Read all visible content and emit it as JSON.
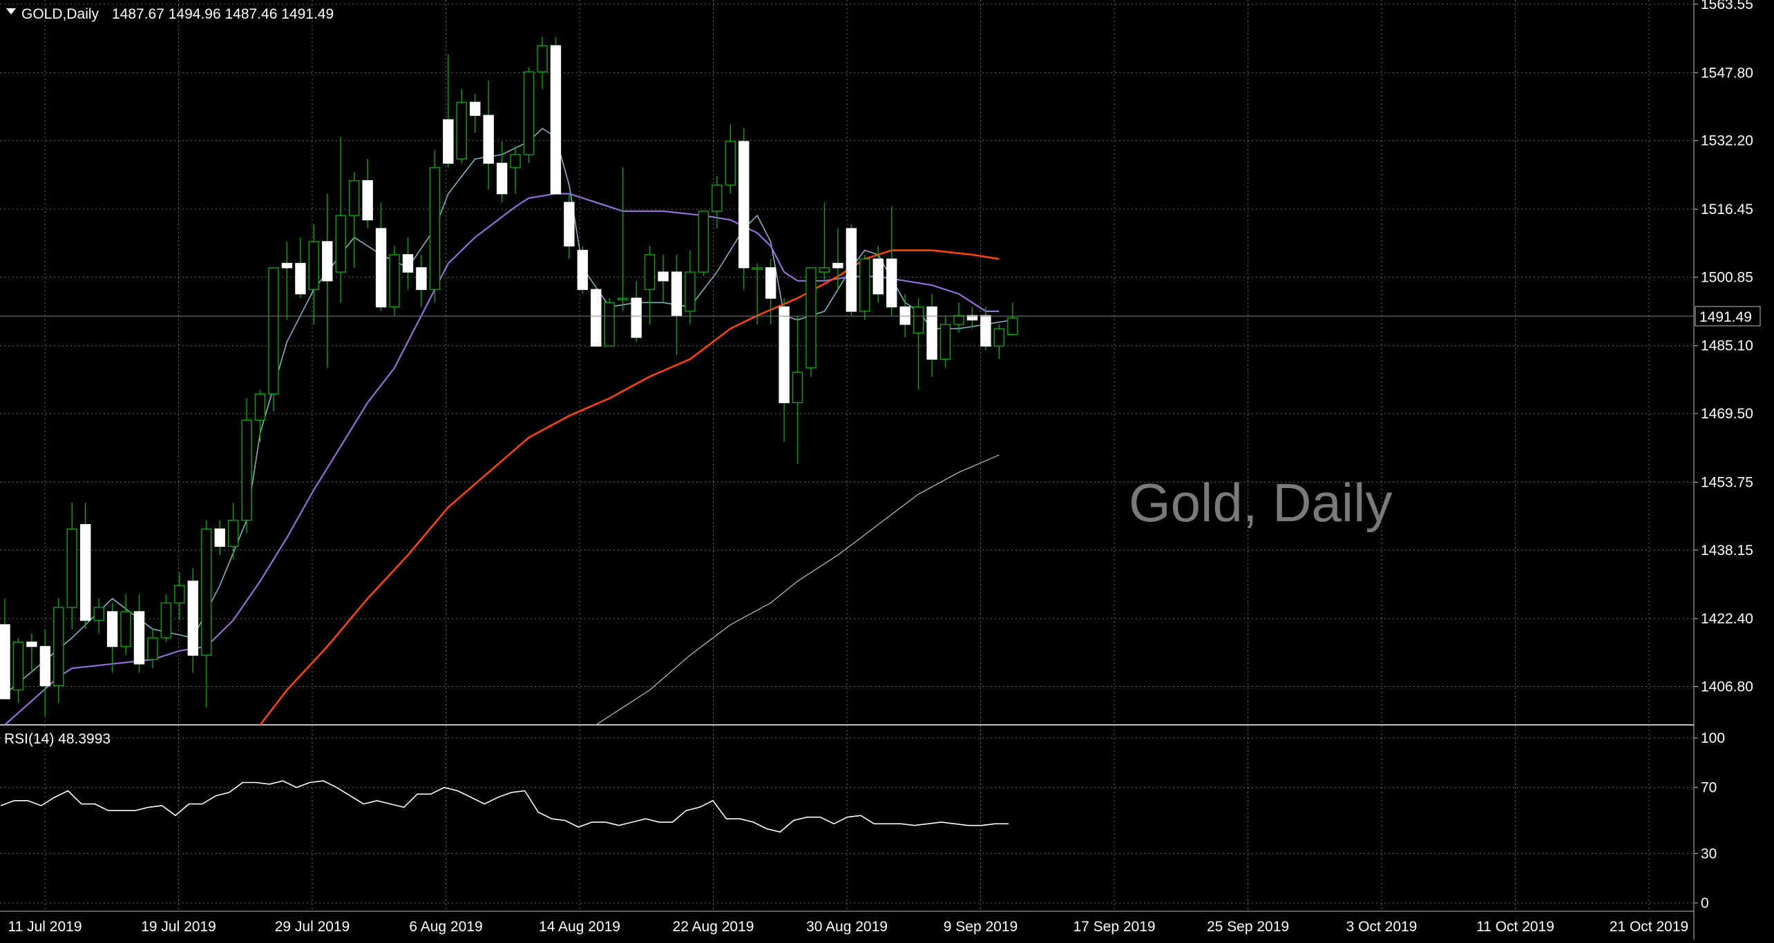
{
  "header": {
    "symbol_label": "GOLD,Daily",
    "ohlc": "1487.67 1494.96 1487.46 1491.49"
  },
  "watermark": "Gold, Daily",
  "current_price_label": "1491.49",
  "rsi_header": "RSI(14) 48.3993",
  "colors": {
    "background": "#000000",
    "grid": "#c0c0c0",
    "bull_candle": "#00aa00",
    "bear_candle": "#ffffff",
    "ma_fast": "#7fb3c8",
    "ma_medium": "#9370db",
    "ma_slow": "#ff4500",
    "ma_long": "#c0c0c0",
    "rsi_line": "#ffffff",
    "watermark": "#7a7a7a"
  },
  "chart_data": [
    {
      "type": "candlestick",
      "title": "GOLD,Daily",
      "price_axis_ticks": [
        "1563.55",
        "1547.80",
        "1532.20",
        "1516.45",
        "1500.85",
        "1485.10",
        "1469.50",
        "1453.75",
        "1438.15",
        "1422.40",
        "1406.80"
      ],
      "ylim": [
        1398,
        1564.5
      ],
      "date_axis_ticks": [
        "11 Jul 2019",
        "19 Jul 2019",
        "29 Jul 2019",
        "6 Aug 2019",
        "14 Aug 2019",
        "22 Aug 2019",
        "30 Aug 2019",
        "9 Sep 2019",
        "17 Sep 2019",
        "25 Sep 2019",
        "3 Oct 2019",
        "11 Oct 2019",
        "21 Oct 2019"
      ],
      "grid": true,
      "candles": [
        {
          "o": 1421,
          "h": 1427,
          "l": 1404,
          "c": 1404
        },
        {
          "o": 1406,
          "h": 1418,
          "l": 1403,
          "c": 1417
        },
        {
          "o": 1417,
          "h": 1419,
          "l": 1410,
          "c": 1416
        },
        {
          "o": 1416,
          "h": 1420,
          "l": 1400,
          "c": 1407
        },
        {
          "o": 1407,
          "h": 1427,
          "l": 1403,
          "c": 1425
        },
        {
          "o": 1425,
          "h": 1449,
          "l": 1420,
          "c": 1443
        },
        {
          "o": 1444,
          "h": 1449,
          "l": 1420,
          "c": 1422
        },
        {
          "o": 1422,
          "h": 1427,
          "l": 1419,
          "c": 1425
        },
        {
          "o": 1424,
          "h": 1426,
          "l": 1410,
          "c": 1416
        },
        {
          "o": 1416,
          "h": 1428,
          "l": 1414,
          "c": 1424
        },
        {
          "o": 1424,
          "h": 1428,
          "l": 1410,
          "c": 1412
        },
        {
          "o": 1413,
          "h": 1420,
          "l": 1411,
          "c": 1418
        },
        {
          "o": 1418,
          "h": 1428,
          "l": 1417,
          "c": 1426
        },
        {
          "o": 1426,
          "h": 1433,
          "l": 1422,
          "c": 1430
        },
        {
          "o": 1431,
          "h": 1434,
          "l": 1410,
          "c": 1414
        },
        {
          "o": 1414,
          "h": 1445,
          "l": 1402,
          "c": 1443
        },
        {
          "o": 1443,
          "h": 1445,
          "l": 1437,
          "c": 1439
        },
        {
          "o": 1439,
          "h": 1449,
          "l": 1436,
          "c": 1445
        },
        {
          "o": 1445,
          "h": 1473,
          "l": 1442,
          "c": 1468
        },
        {
          "o": 1468,
          "h": 1475,
          "l": 1463,
          "c": 1474
        },
        {
          "o": 1474,
          "h": 1503,
          "l": 1470,
          "c": 1503
        },
        {
          "o": 1504,
          "h": 1509,
          "l": 1491,
          "c": 1503
        },
        {
          "o": 1504,
          "h": 1510,
          "l": 1496,
          "c": 1497
        },
        {
          "o": 1498,
          "h": 1513,
          "l": 1490,
          "c": 1509
        },
        {
          "o": 1509,
          "h": 1520,
          "l": 1480,
          "c": 1500
        },
        {
          "o": 1502,
          "h": 1533,
          "l": 1495,
          "c": 1515
        },
        {
          "o": 1515,
          "h": 1525,
          "l": 1503,
          "c": 1523
        },
        {
          "o": 1523,
          "h": 1528,
          "l": 1512,
          "c": 1514
        },
        {
          "o": 1512,
          "h": 1518,
          "l": 1493,
          "c": 1494
        },
        {
          "o": 1494,
          "h": 1508,
          "l": 1492,
          "c": 1506
        },
        {
          "o": 1506,
          "h": 1510,
          "l": 1498,
          "c": 1502
        },
        {
          "o": 1503,
          "h": 1506,
          "l": 1494,
          "c": 1498
        },
        {
          "o": 1498,
          "h": 1530,
          "l": 1495,
          "c": 1526
        },
        {
          "o": 1537,
          "h": 1552,
          "l": 1526,
          "c": 1527
        },
        {
          "o": 1528,
          "h": 1544,
          "l": 1527,
          "c": 1541
        },
        {
          "o": 1541,
          "h": 1543,
          "l": 1534,
          "c": 1538
        },
        {
          "o": 1538,
          "h": 1546,
          "l": 1521,
          "c": 1527
        },
        {
          "o": 1527,
          "h": 1532,
          "l": 1518,
          "c": 1520
        },
        {
          "o": 1526,
          "h": 1531,
          "l": 1520,
          "c": 1529
        },
        {
          "o": 1529,
          "h": 1549,
          "l": 1527,
          "c": 1548
        },
        {
          "o": 1548,
          "h": 1556,
          "l": 1544,
          "c": 1554
        },
        {
          "o": 1554,
          "h": 1556,
          "l": 1520,
          "c": 1520
        },
        {
          "o": 1518,
          "h": 1520,
          "l": 1505,
          "c": 1508
        },
        {
          "o": 1507,
          "h": 1508,
          "l": 1497,
          "c": 1498
        },
        {
          "o": 1498,
          "h": 1499,
          "l": 1485,
          "c": 1485
        },
        {
          "o": 1485,
          "h": 1496,
          "l": 1485,
          "c": 1495
        },
        {
          "o": 1496,
          "h": 1526,
          "l": 1493,
          "c": 1496
        },
        {
          "o": 1496,
          "h": 1500,
          "l": 1486,
          "c": 1487
        },
        {
          "o": 1498,
          "h": 1508,
          "l": 1490,
          "c": 1506
        },
        {
          "o": 1502,
          "h": 1506,
          "l": 1495,
          "c": 1500
        },
        {
          "o": 1502,
          "h": 1506,
          "l": 1483,
          "c": 1492
        },
        {
          "o": 1493,
          "h": 1507,
          "l": 1490,
          "c": 1502
        },
        {
          "o": 1502,
          "h": 1516,
          "l": 1501,
          "c": 1516
        },
        {
          "o": 1516,
          "h": 1524,
          "l": 1512,
          "c": 1522
        },
        {
          "o": 1522,
          "h": 1536,
          "l": 1520,
          "c": 1532
        },
        {
          "o": 1532,
          "h": 1535,
          "l": 1498,
          "c": 1503
        },
        {
          "o": 1503,
          "h": 1504,
          "l": 1490,
          "c": 1503
        },
        {
          "o": 1503,
          "h": 1505,
          "l": 1490,
          "c": 1496
        },
        {
          "o": 1494,
          "h": 1496,
          "l": 1463,
          "c": 1472
        },
        {
          "o": 1472,
          "h": 1492,
          "l": 1458,
          "c": 1479
        },
        {
          "o": 1480,
          "h": 1503,
          "l": 1478,
          "c": 1503
        },
        {
          "o": 1502,
          "h": 1518,
          "l": 1500,
          "c": 1503
        },
        {
          "o": 1504,
          "h": 1512,
          "l": 1498,
          "c": 1503
        },
        {
          "o": 1512,
          "h": 1513,
          "l": 1492,
          "c": 1493
        },
        {
          "o": 1493,
          "h": 1506,
          "l": 1491,
          "c": 1505
        },
        {
          "o": 1505,
          "h": 1508,
          "l": 1495,
          "c": 1497
        },
        {
          "o": 1505,
          "h": 1517,
          "l": 1492,
          "c": 1494
        },
        {
          "o": 1494,
          "h": 1497,
          "l": 1487,
          "c": 1490
        },
        {
          "o": 1488,
          "h": 1496,
          "l": 1475,
          "c": 1494
        },
        {
          "o": 1494,
          "h": 1497,
          "l": 1478,
          "c": 1482
        },
        {
          "o": 1482,
          "h": 1492,
          "l": 1480,
          "c": 1490
        },
        {
          "o": 1490,
          "h": 1495,
          "l": 1488,
          "c": 1492
        },
        {
          "o": 1492,
          "h": 1494,
          "l": 1489,
          "c": 1491
        },
        {
          "o": 1492,
          "h": 1494,
          "l": 1484,
          "c": 1485
        },
        {
          "o": 1485,
          "h": 1490,
          "l": 1482,
          "c": 1489
        },
        {
          "o": 1487.67,
          "h": 1494.96,
          "l": 1487.46,
          "c": 1491.49
        }
      ],
      "moving_averages": [
        {
          "role": "fast",
          "color_key": "ma_fast",
          "points": [
            [
              0,
              1405
            ],
            [
              5,
              1418
            ],
            [
              8,
              1427
            ],
            [
              11,
              1420
            ],
            [
              14,
              1418
            ],
            [
              16,
              1430
            ],
            [
              18,
              1445
            ],
            [
              19,
              1465
            ],
            [
              21,
              1486
            ],
            [
              23,
              1498
            ],
            [
              26,
              1510
            ],
            [
              28,
              1506
            ],
            [
              30,
              1503
            ],
            [
              32,
              1512
            ],
            [
              33,
              1520
            ],
            [
              35,
              1528
            ],
            [
              37,
              1529
            ],
            [
              39,
              1532
            ],
            [
              40,
              1535
            ],
            [
              41,
              1533
            ],
            [
              42,
              1522
            ],
            [
              43,
              1503
            ],
            [
              45,
              1494
            ],
            [
              47,
              1495
            ],
            [
              49,
              1495
            ],
            [
              51,
              1494
            ],
            [
              53,
              1502
            ],
            [
              55,
              1512
            ],
            [
              56,
              1515
            ],
            [
              57,
              1509
            ],
            [
              58,
              1492
            ],
            [
              59,
              1491
            ],
            [
              61,
              1493
            ],
            [
              62,
              1498
            ],
            [
              63,
              1503
            ],
            [
              64,
              1507
            ],
            [
              65,
              1506
            ],
            [
              67,
              1495
            ],
            [
              68,
              1493
            ],
            [
              69,
              1489
            ],
            [
              71,
              1489
            ],
            [
              73,
              1490
            ],
            [
              75,
              1491
            ]
          ]
        },
        {
          "role": "medium",
          "color_key": "ma_medium",
          "points": [
            [
              0,
              1398
            ],
            [
              4,
              1409
            ],
            [
              5,
              1411
            ],
            [
              8,
              1412
            ],
            [
              11,
              1413
            ],
            [
              13,
              1415
            ],
            [
              15,
              1416
            ],
            [
              17,
              1422
            ],
            [
              19,
              1431
            ],
            [
              21,
              1441
            ],
            [
              23,
              1452
            ],
            [
              25,
              1462
            ],
            [
              27,
              1472
            ],
            [
              29,
              1480
            ],
            [
              31,
              1492
            ],
            [
              33,
              1504
            ],
            [
              35,
              1510
            ],
            [
              38,
              1517
            ],
            [
              39,
              1519
            ],
            [
              41,
              1520
            ],
            [
              42,
              1520
            ],
            [
              44,
              1518
            ],
            [
              46,
              1516
            ],
            [
              49,
              1516
            ],
            [
              52,
              1515
            ],
            [
              54,
              1514
            ],
            [
              56,
              1511
            ],
            [
              57,
              1508
            ],
            [
              58,
              1502
            ],
            [
              59,
              1500
            ],
            [
              61,
              1500
            ],
            [
              63,
              1501
            ],
            [
              65,
              1501
            ],
            [
              67,
              1500
            ],
            [
              69,
              1499
            ],
            [
              71,
              1497
            ],
            [
              73,
              1493
            ],
            [
              74,
              1493
            ]
          ]
        },
        {
          "role": "slow",
          "color_key": "ma_slow",
          "points": [
            [
              19,
              1398
            ],
            [
              21,
              1406
            ],
            [
              24,
              1416
            ],
            [
              27,
              1427
            ],
            [
              30,
              1437
            ],
            [
              33,
              1448
            ],
            [
              36,
              1456
            ],
            [
              39,
              1464
            ],
            [
              42,
              1469
            ],
            [
              45,
              1473
            ],
            [
              48,
              1478
            ],
            [
              51,
              1482
            ],
            [
              54,
              1489
            ],
            [
              56,
              1492
            ],
            [
              59,
              1496
            ],
            [
              62,
              1501
            ],
            [
              64,
              1505
            ],
            [
              66,
              1507
            ],
            [
              69,
              1507
            ],
            [
              72,
              1506
            ],
            [
              74,
              1505
            ]
          ]
        },
        {
          "role": "long",
          "color_key": "ma_long",
          "points": [
            [
              44,
              1398
            ],
            [
              48,
              1406
            ],
            [
              51,
              1414
            ],
            [
              54,
              1421
            ],
            [
              57,
              1426
            ],
            [
              59,
              1431
            ],
            [
              62,
              1437
            ],
            [
              65,
              1444
            ],
            [
              68,
              1451
            ],
            [
              71,
              1456
            ],
            [
              74,
              1460
            ]
          ]
        }
      ]
    },
    {
      "type": "line",
      "title": "RSI(14) 48.3993",
      "ylim": [
        0,
        100
      ],
      "y_ticks": [
        "100",
        "70",
        "30",
        "0"
      ],
      "series": [
        {
          "name": "RSI(14)",
          "values": [
            59,
            62,
            62,
            59,
            64,
            68,
            60,
            60,
            56,
            56,
            56,
            58,
            59,
            53,
            60,
            60,
            65,
            67,
            73,
            73,
            72,
            74,
            70,
            73,
            74,
            70,
            65,
            60,
            62,
            60,
            58,
            66,
            66,
            70,
            68,
            64,
            60,
            64,
            67,
            68,
            55,
            51,
            50,
            46,
            49,
            49,
            47,
            49,
            51,
            49,
            49,
            56,
            58,
            62,
            51,
            51,
            49,
            45,
            43,
            50,
            52,
            52,
            48,
            52,
            53,
            48,
            48,
            48,
            47,
            48,
            49,
            48,
            47,
            47,
            48,
            48
          ]
        }
      ]
    }
  ]
}
